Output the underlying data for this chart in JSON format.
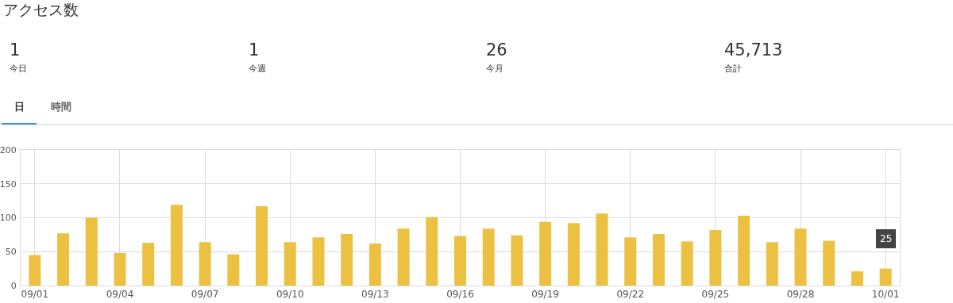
{
  "chart_data": {
    "type": "bar",
    "title": "アクセス数",
    "categories": [
      "09/01",
      null,
      null,
      "09/04",
      null,
      null,
      "09/07",
      null,
      null,
      "09/10",
      null,
      null,
      "09/13",
      null,
      null,
      "09/16",
      null,
      null,
      "09/19",
      null,
      null,
      "09/22",
      null,
      null,
      "09/25",
      null,
      null,
      "09/28",
      null,
      null,
      "10/01"
    ],
    "values": [
      45,
      77,
      100,
      48,
      63,
      119,
      64,
      46,
      117,
      64,
      71,
      76,
      62,
      84,
      101,
      73,
      84,
      74,
      94,
      92,
      106,
      71,
      76,
      65,
      82,
      103,
      64,
      84,
      66,
      21,
      25
    ],
    "color": "#ecc142",
    "ylim": [
      0,
      200
    ],
    "yticks": [
      0,
      50,
      100,
      150,
      200
    ],
    "grid": true,
    "legend": false,
    "annotations": [
      "1",
      "今日",
      "1",
      "今週",
      "26",
      "今月",
      "45,713",
      "合計",
      "日",
      "時間",
      {
        "text": "25",
        "x": "10/01",
        "y": 25
      }
    ]
  }
}
